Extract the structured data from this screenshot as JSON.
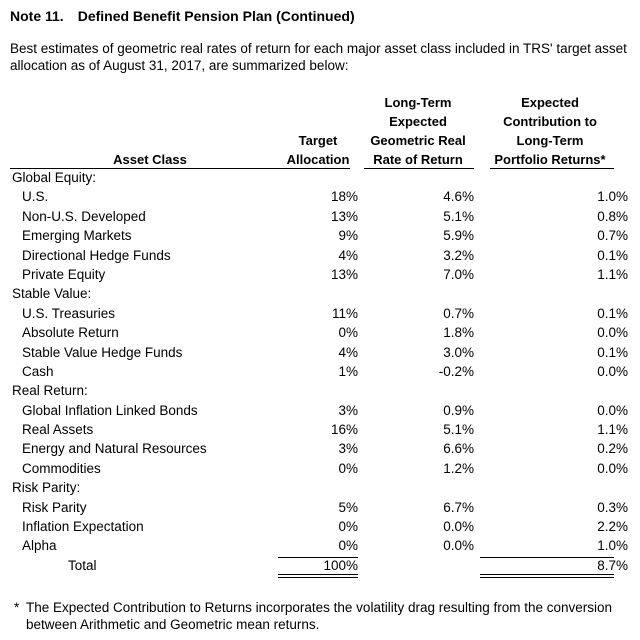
{
  "note": {
    "number": "Note 11.",
    "title": "Defined Benefit Pension Plan (Continued)"
  },
  "intro": "Best estimates of geometric real rates of return for each major asset class included in TRS' target asset allocation as of August 31, 2017, are summarized below:",
  "headers": {
    "asset_class": "Asset Class",
    "target_allocation": [
      "Target",
      "Allocation"
    ],
    "expected_rate": [
      "Long-Term",
      "Expected",
      "Geometric Real",
      "Rate of Return"
    ],
    "expected_contribution": [
      "Expected",
      "Contribution to",
      "Long-Term",
      "Portfolio Returns*"
    ]
  },
  "rows": [
    {
      "label": "Global Equity:",
      "type": "group",
      "target": "",
      "rate": "",
      "contribution": ""
    },
    {
      "label": "U.S.",
      "type": "item",
      "target": "18%",
      "rate": "4.6%",
      "contribution": "1.0%"
    },
    {
      "label": "Non-U.S. Developed",
      "type": "item",
      "target": "13%",
      "rate": "5.1%",
      "contribution": "0.8%"
    },
    {
      "label": "Emerging Markets",
      "type": "item",
      "target": "9%",
      "rate": "5.9%",
      "contribution": "0.7%"
    },
    {
      "label": "Directional Hedge Funds",
      "type": "item",
      "target": "4%",
      "rate": "3.2%",
      "contribution": "0.1%"
    },
    {
      "label": "Private Equity",
      "type": "item",
      "target": "13%",
      "rate": "7.0%",
      "contribution": "1.1%"
    },
    {
      "label": "Stable Value:",
      "type": "group",
      "target": "",
      "rate": "",
      "contribution": ""
    },
    {
      "label": "U.S. Treasuries",
      "type": "item",
      "target": "11%",
      "rate": "0.7%",
      "contribution": "0.1%"
    },
    {
      "label": "Absolute Return",
      "type": "item",
      "target": "0%",
      "rate": "1.8%",
      "contribution": "0.0%"
    },
    {
      "label": "Stable Value Hedge Funds",
      "type": "item",
      "target": "4%",
      "rate": "3.0%",
      "contribution": "0.1%"
    },
    {
      "label": "Cash",
      "type": "item",
      "target": "1%",
      "rate": "-0.2%",
      "contribution": "0.0%"
    },
    {
      "label": "Real Return:",
      "type": "group",
      "target": "",
      "rate": "",
      "contribution": ""
    },
    {
      "label": "Global Inflation Linked Bonds",
      "type": "item",
      "target": "3%",
      "rate": "0.9%",
      "contribution": "0.0%"
    },
    {
      "label": "Real Assets",
      "type": "item",
      "target": "16%",
      "rate": "5.1%",
      "contribution": "1.1%"
    },
    {
      "label": "Energy and Natural Resources",
      "type": "item",
      "target": "3%",
      "rate": "6.6%",
      "contribution": "0.2%"
    },
    {
      "label": "Commodities",
      "type": "item",
      "target": "0%",
      "rate": "1.2%",
      "contribution": "0.0%"
    },
    {
      "label": "Risk Parity:",
      "type": "group",
      "target": "",
      "rate": "",
      "contribution": ""
    },
    {
      "label": "Risk Parity",
      "type": "item",
      "target": "5%",
      "rate": "6.7%",
      "contribution": "0.3%"
    },
    {
      "label": "Inflation Expectation",
      "type": "item",
      "target": "0%",
      "rate": "0.0%",
      "contribution": "2.2%"
    },
    {
      "label": "Alpha",
      "type": "item",
      "target": "0%",
      "rate": "0.0%",
      "contribution": "1.0%"
    },
    {
      "label": "Total",
      "type": "total",
      "target": "100%",
      "rate": "",
      "contribution": "8.7%"
    }
  ],
  "footnote": {
    "marker": "*",
    "text": "The Expected Contribution to Returns incorporates the volatility drag resulting from the conversion between Arithmetic and Geometric mean returns."
  }
}
